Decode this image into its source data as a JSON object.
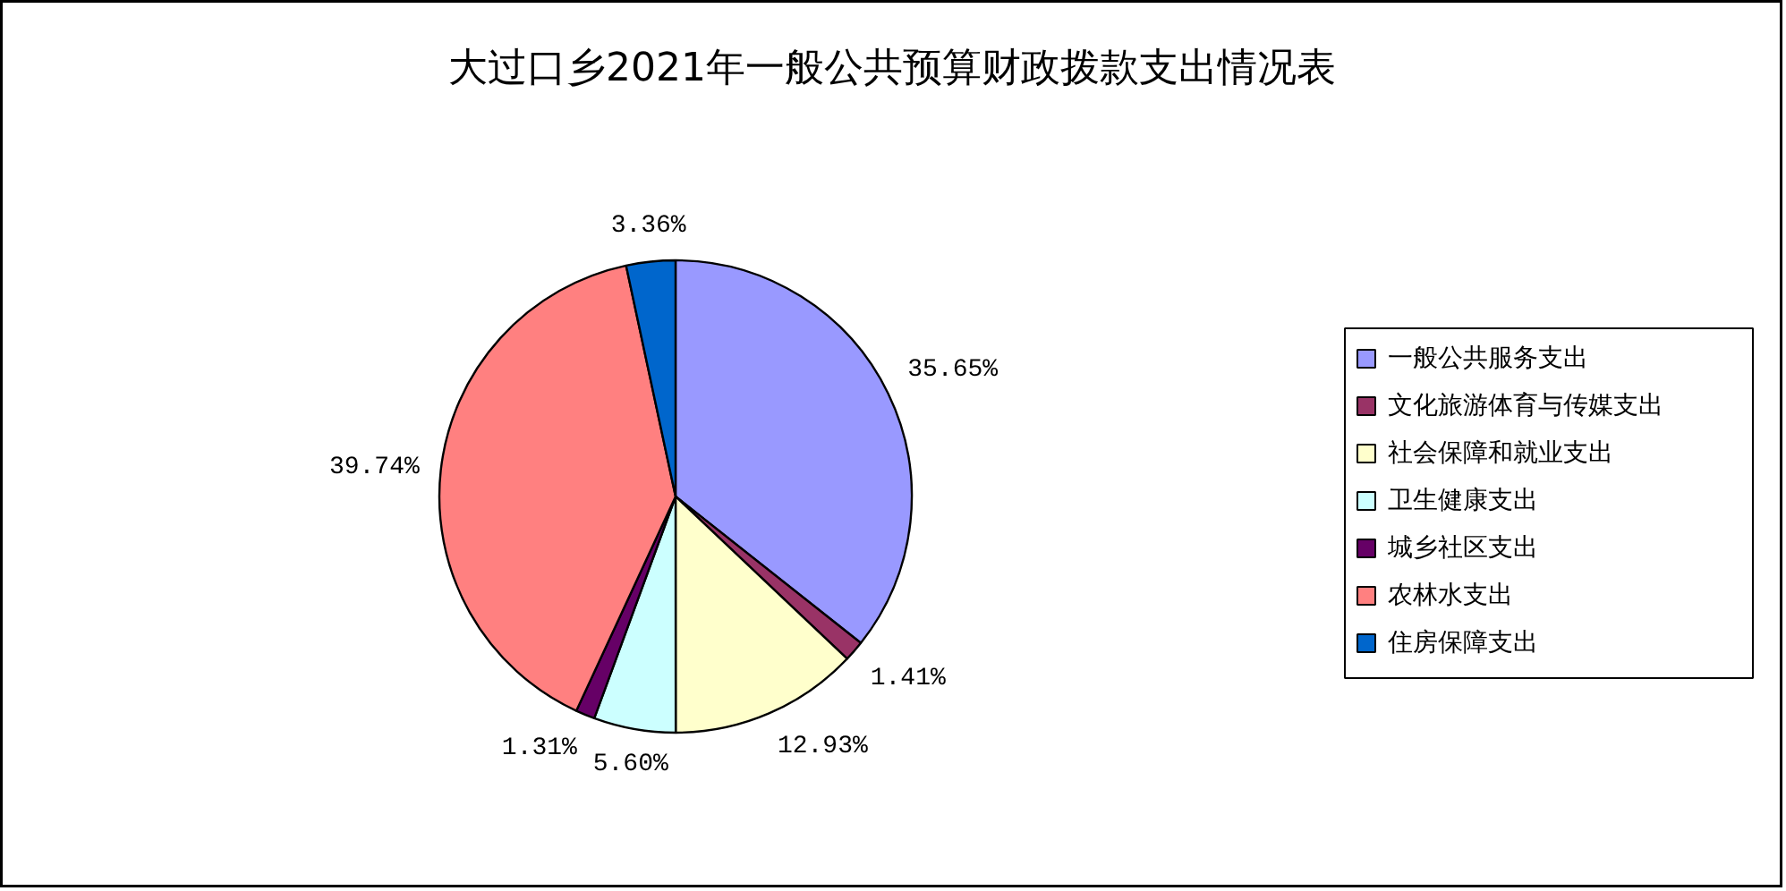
{
  "chart_data": {
    "type": "pie",
    "title": "大过口乡2021年一般公共预算财政拨款支出情况表",
    "categories": [
      "一般公共服务支出",
      "文化旅游体育与传媒支出",
      "社会保障和就业支出",
      "卫生健康支出",
      "城乡社区支出",
      "农林水支出",
      "住房保障支出"
    ],
    "values": [
      35.65,
      1.41,
      12.93,
      5.6,
      1.31,
      39.74,
      3.36
    ],
    "value_labels": [
      "35.65%",
      "1.41%",
      "12.93%",
      "5.60%",
      "1.31%",
      "39.74%",
      "3.36%"
    ],
    "colors": [
      "#9999ff",
      "#993366",
      "#ffffcc",
      "#ccffff",
      "#660066",
      "#ff8080",
      "#0066cc"
    ],
    "legend": "right"
  }
}
